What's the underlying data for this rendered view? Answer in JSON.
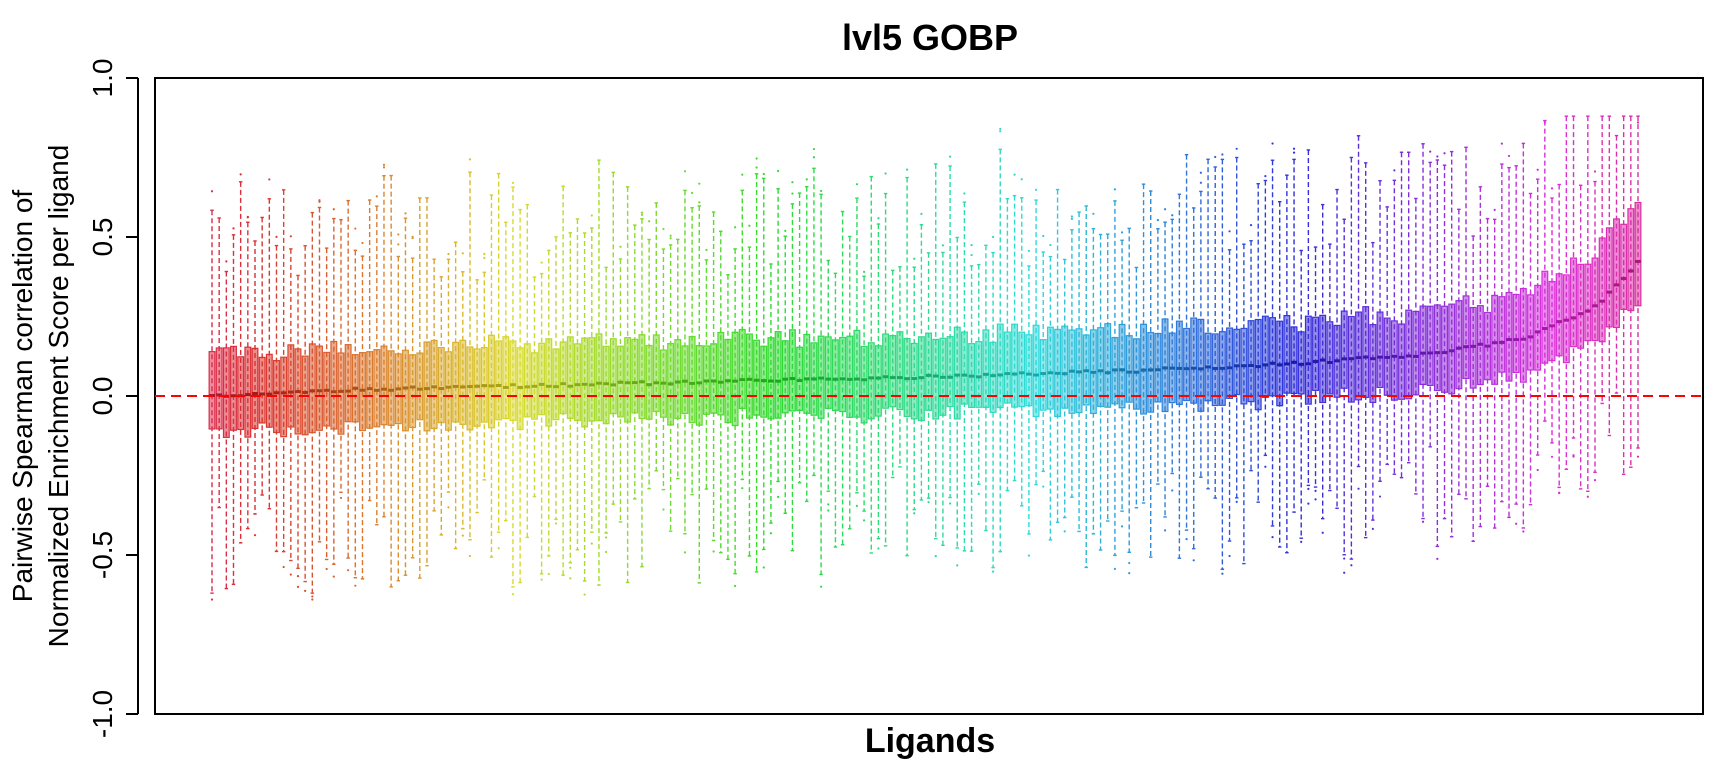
{
  "chart_data": {
    "type": "boxplot",
    "title": "lvl5 GOBP",
    "xlabel": "Ligands",
    "ylabel_lines": [
      "Pairwise Spearman correlation of",
      "Normalized Enrichment Score per ligand"
    ],
    "ylim": [
      -1.0,
      1.0
    ],
    "yticks": [
      {
        "value": -1.0,
        "label": "-1.0"
      },
      {
        "value": -0.5,
        "label": "-0.5"
      },
      {
        "value": 0.0,
        "label": "0.0"
      },
      {
        "value": 0.5,
        "label": "0.5"
      },
      {
        "value": 1.0,
        "label": "1.0"
      }
    ],
    "reference_line": {
      "value": 0.0,
      "color": "#ff0000",
      "style": "dashed"
    },
    "n_boxes": 200,
    "box_colors": "rainbow hue gradient (red → orange → olive → green → teal → blue → purple → pink)",
    "median_anchors": [
      {
        "position": 0.0,
        "median": 0.0
      },
      {
        "position": 0.1,
        "median": 0.02
      },
      {
        "position": 0.3,
        "median": 0.04
      },
      {
        "position": 0.5,
        "median": 0.06
      },
      {
        "position": 0.65,
        "median": 0.08
      },
      {
        "position": 0.75,
        "median": 0.1
      },
      {
        "position": 0.85,
        "median": 0.13
      },
      {
        "position": 0.92,
        "median": 0.18
      },
      {
        "position": 0.97,
        "median": 0.28
      },
      {
        "position": 1.0,
        "median": 0.42
      }
    ],
    "q1_offset_below_median": 0.09,
    "q3_offset_above_median": 0.1,
    "whisker_low_range": [
      -0.5,
      -0.3
    ],
    "whisker_high_range": [
      0.35,
      0.75
    ]
  }
}
